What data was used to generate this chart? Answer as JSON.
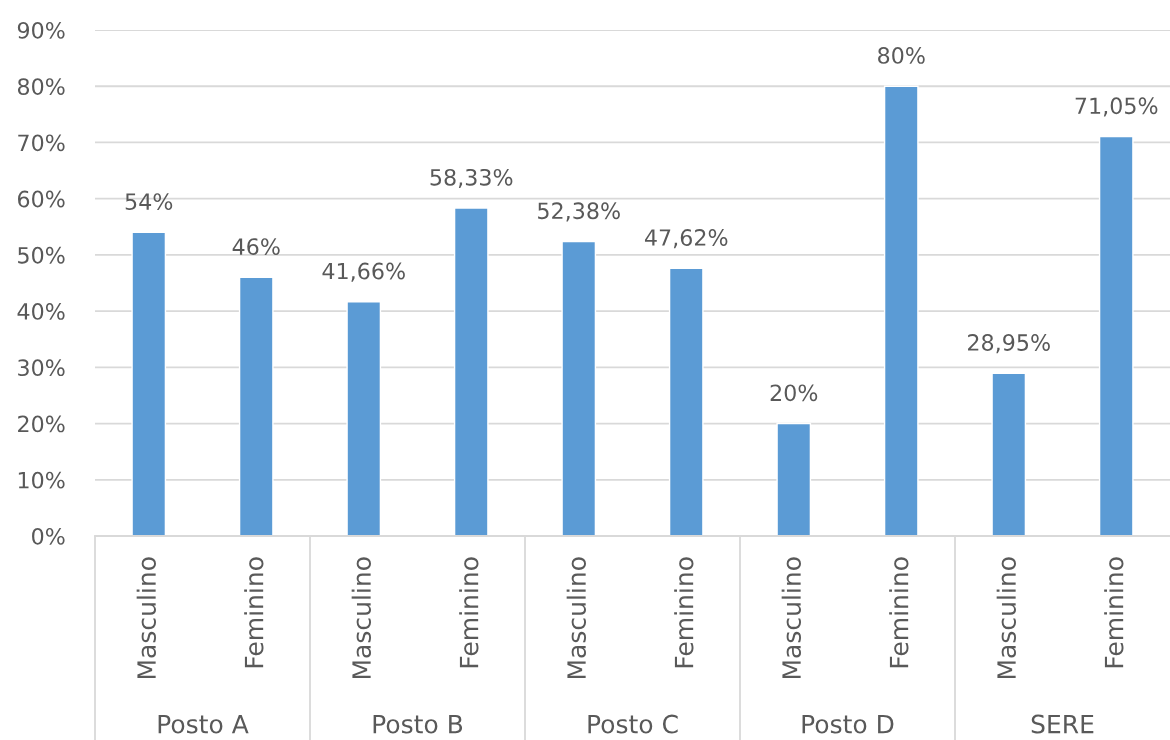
{
  "chart_data": {
    "type": "bar",
    "categories": [
      "Masculino",
      "Feminino",
      "Masculino",
      "Feminino",
      "Masculino",
      "Feminino",
      "Masculino",
      "Feminino",
      "Masculino",
      "Feminino"
    ],
    "values": [
      54,
      46,
      41.66,
      58.33,
      52.38,
      47.62,
      20,
      80,
      28.95,
      71.05
    ],
    "value_labels": [
      "54%",
      "46%",
      "41,66%",
      "58,33%",
      "52,38%",
      "47,62%",
      "20%",
      "80%",
      "28,95%",
      "71,05%"
    ],
    "color": "#5b9bd5",
    "ylim": [
      0,
      90
    ],
    "yticks": [
      {
        "value": 0,
        "label": "0%"
      },
      {
        "value": 10,
        "label": "10%"
      },
      {
        "value": 20,
        "label": "20%"
      },
      {
        "value": 30,
        "label": "30%"
      },
      {
        "value": 40,
        "label": "40%"
      },
      {
        "value": 50,
        "label": "50%"
      },
      {
        "value": 60,
        "label": "60%"
      },
      {
        "value": 70,
        "label": "70%"
      },
      {
        "value": 80,
        "label": "80%"
      },
      {
        "value": 90,
        "label": "90%"
      }
    ],
    "grid": "y",
    "annotations": [
      "Posto A",
      "Posto B",
      "Posto C",
      "Posto D",
      "SERE"
    ]
  }
}
